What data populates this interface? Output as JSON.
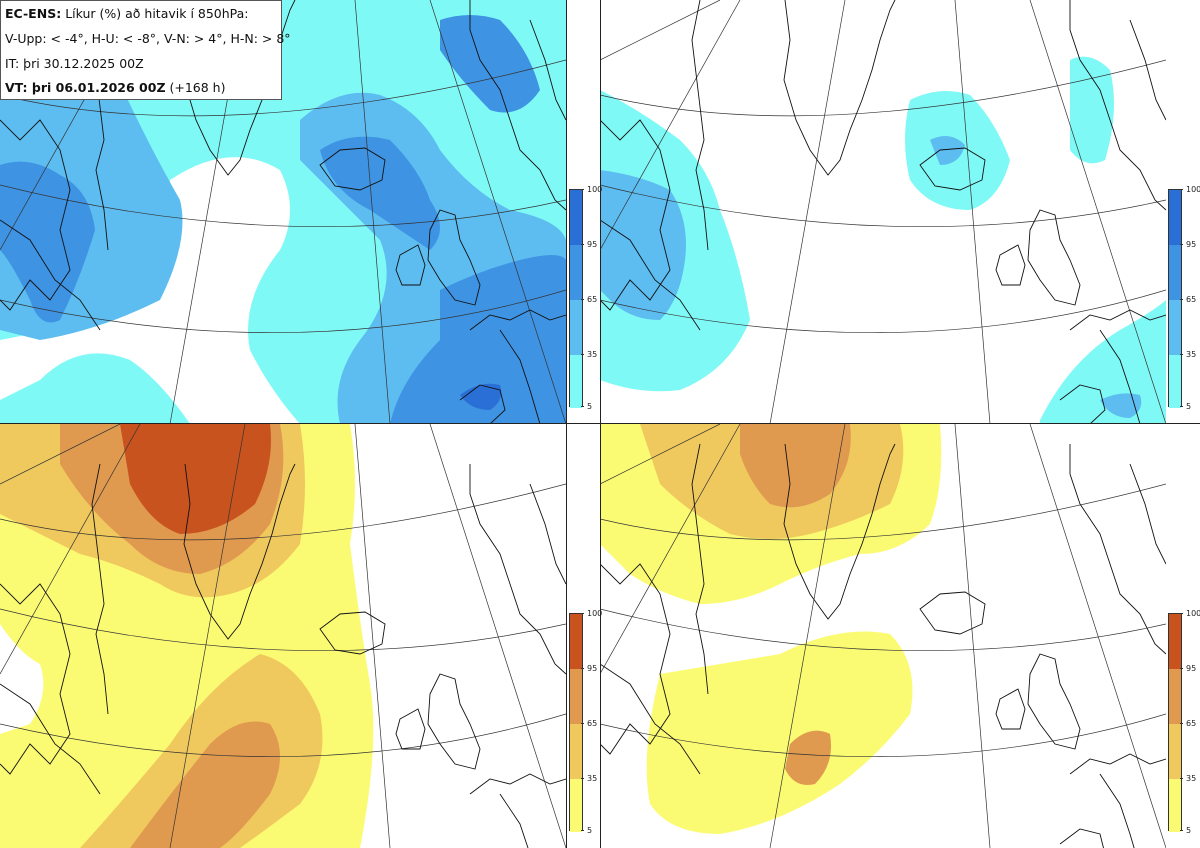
{
  "header": {
    "model_label": "EC-ENS:",
    "title_rest": "Líkur (%) að hitavik í 850hPa:",
    "definitions": "V-Upp: < -4°, H-U: < -8°, V-N: > 4°, H-N: > 8°",
    "init_time": "IT: þri 30.12.2025 00Z",
    "valid_label": "VT: þri 06.01.2026 00Z",
    "lead_time": "(+168 h)"
  },
  "map_data": {
    "type": "probability-maps",
    "projection": "polar stereographic, North Atlantic / Iceland",
    "panels": [
      {
        "id": "top-left",
        "variable": "V-Upp",
        "threshold_c": -4,
        "palette": "cold"
      },
      {
        "id": "top-right",
        "variable": "H-U",
        "threshold_c": -8,
        "palette": "cold"
      },
      {
        "id": "bottom-left",
        "variable": "V-N",
        "threshold_c": 4,
        "palette": "warm"
      },
      {
        "id": "bottom-right",
        "variable": "H-N",
        "threshold_c": 8,
        "palette": "warm"
      }
    ]
  },
  "legend": {
    "ticks": [
      "100",
      "95",
      "65",
      "35",
      "5"
    ],
    "cold_colors": [
      "#2a6fd6",
      "#3f93e3",
      "#5dbdf0",
      "#7ff9f6"
    ],
    "warm_colors": [
      "#c8531e",
      "#e09a4f",
      "#f0c95e",
      "#fbfb73"
    ]
  }
}
